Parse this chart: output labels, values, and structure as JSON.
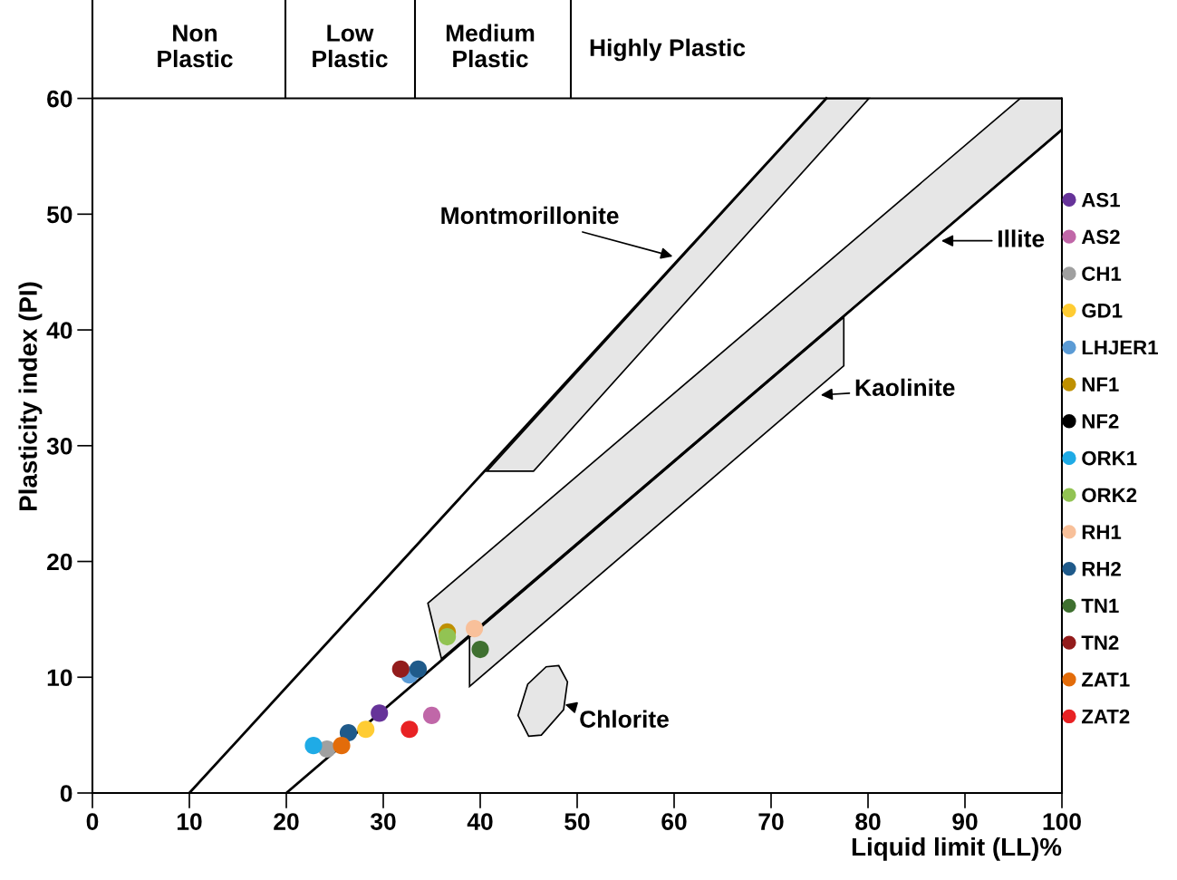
{
  "chart_data": {
    "type": "scatter",
    "xlabel": "Liquid limit (LL)%",
    "ylabel": "Plasticity index (PI)",
    "xlim": [
      0,
      100
    ],
    "ylim": [
      0,
      68.5
    ],
    "xticks": [
      0,
      10,
      20,
      30,
      40,
      50,
      60,
      70,
      80,
      90,
      100
    ],
    "yticks": [
      0,
      10,
      20,
      30,
      40,
      50,
      60
    ],
    "grid": false,
    "ref_lines": [
      {
        "axis": "y",
        "value": 60,
        "color": "#000000"
      }
    ],
    "legend": "right",
    "marker": "circle",
    "annotations": [
      "Non\nPlastic",
      "Low\nPlastic",
      "Medium\nPlastic",
      "Highly Plastic",
      {
        "text": "Montmorillonite",
        "x": 60.1,
        "y": 46.3
      },
      {
        "text": "Illite",
        "x": 87.3,
        "y": 47.7
      },
      "Kaolinite",
      {
        "text": "Chlorite",
        "x": 48.5,
        "y": 7.7
      }
    ],
    "series": [
      {
        "type": "area",
        "marker": "none",
        "color": "#e6e6e6",
        "x": [
          40.7,
          75.7,
          80.1,
          45.5
        ],
        "values": [
          27.8,
          60,
          60,
          27.8
        ]
      },
      {
        "type": "area",
        "marker": "none",
        "color": "#e6e6e6",
        "x": [
          34.6,
          36.0,
          100,
          100,
          95.7
        ],
        "values": [
          16.4,
          11.6,
          57.3,
          60,
          60
        ]
      },
      {
        "type": "area",
        "marker": "none",
        "color": "#e6e6e6",
        "x": [
          38.9,
          38.9,
          77.5,
          77.5
        ],
        "values": [
          9.2,
          13.5,
          41.1,
          36.9
        ]
      },
      {
        "type": "area",
        "marker": "none",
        "color": "#e6e6e6",
        "x": [
          48.1,
          49.0,
          48.6,
          46.3,
          45.0,
          43.9,
          44.9,
          46.8
        ],
        "values": [
          11.0,
          9.6,
          7.2,
          5.0,
          4.9,
          6.7,
          9.4,
          10.9
        ]
      },
      {
        "type": "line",
        "marker": "none",
        "color": "#000000",
        "x": [
          10,
          75.7
        ],
        "values": [
          0,
          60
        ]
      },
      {
        "type": "line",
        "marker": "none",
        "color": "#000000",
        "x": [
          20,
          100
        ],
        "values": [
          0,
          57.3
        ]
      },
      {
        "name": "AS1",
        "color": "#663399",
        "x": [
          29.6
        ],
        "values": [
          6.9
        ]
      },
      {
        "name": "AS2",
        "color": "#c067a8",
        "x": [
          35.0
        ],
        "values": [
          6.7
        ]
      },
      {
        "name": "CH1",
        "color": "#a0a0a0",
        "x": [
          24.2
        ],
        "values": [
          3.8
        ]
      },
      {
        "name": "GD1",
        "color": "#ffcc33",
        "x": [
          28.2
        ],
        "values": [
          5.5
        ]
      },
      {
        "name": "LHJER1",
        "color": "#5b9bd5",
        "x": [
          32.7
        ],
        "values": [
          10.2
        ]
      },
      {
        "name": "NF1",
        "color": "#bf9000",
        "x": [
          36.6
        ],
        "values": [
          13.9
        ]
      },
      {
        "name": "NF2",
        "color": "#000000"
      },
      {
        "name": "ORK1",
        "color": "#1fabe6",
        "x": [
          22.8
        ],
        "values": [
          4.1
        ]
      },
      {
        "name": "ORK2",
        "color": "#92c353",
        "x": [
          36.6
        ],
        "values": [
          13.5
        ]
      },
      {
        "name": "RH1",
        "color": "#f8c09a",
        "x": [
          39.4
        ],
        "values": [
          14.2
        ]
      },
      {
        "name": "RH2",
        "color": "#1f5a8a",
        "x": [
          33.6,
          26.4
        ],
        "values": [
          10.7,
          5.2
        ]
      },
      {
        "name": "TN1",
        "color": "#3f7030",
        "x": [
          40.0
        ],
        "values": [
          12.4
        ]
      },
      {
        "name": "TN2",
        "color": "#931c1c",
        "x": [
          31.8
        ],
        "values": [
          10.7
        ]
      },
      {
        "name": "ZAT1",
        "color": "#e36c0a",
        "x": [
          25.7
        ],
        "values": [
          4.1
        ]
      },
      {
        "name": "ZAT2",
        "color": "#e82224",
        "x": [
          32.7
        ],
        "values": [
          5.5
        ]
      }
    ]
  }
}
